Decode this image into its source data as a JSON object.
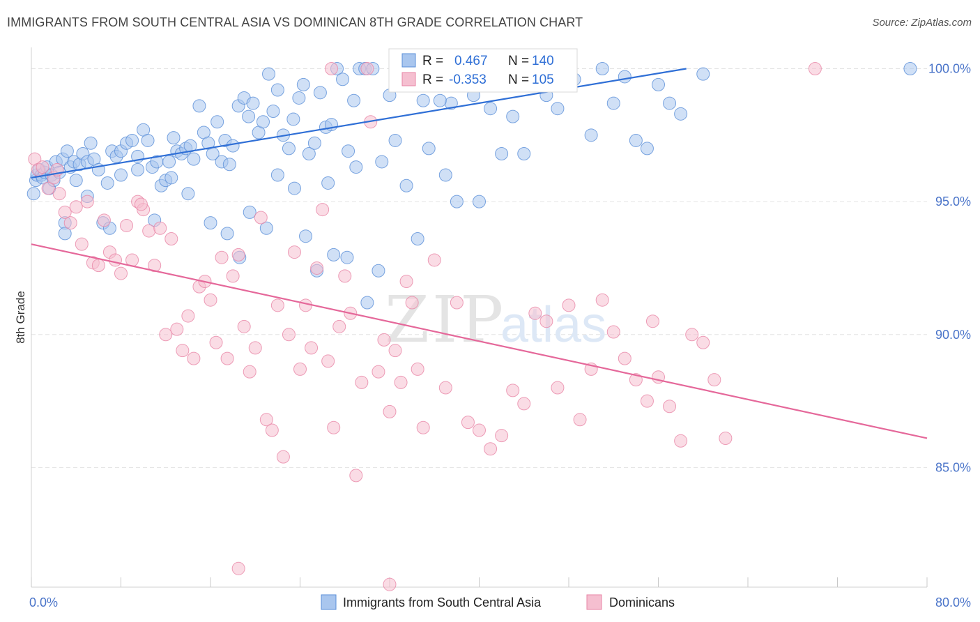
{
  "title": "IMMIGRANTS FROM SOUTH CENTRAL ASIA VS DOMINICAN 8TH GRADE CORRELATION CHART",
  "source": "Source: ZipAtlas.com",
  "watermark": {
    "zip": "ZIP",
    "atlas": "atlas"
  },
  "colors": {
    "blue_fill": "#a9c6ee",
    "blue_stroke": "#5a8fd8",
    "blue_line": "#2f6fd6",
    "pink_fill": "#f5bfd0",
    "pink_stroke": "#e886a6",
    "pink_line": "#e5689a",
    "axis_label": "#4a74c9",
    "grid": "#e3e3e3"
  },
  "chart_data": {
    "type": "scatter",
    "title": "IMMIGRANTS FROM SOUTH CENTRAL ASIA VS DOMINICAN 8TH GRADE CORRELATION CHART",
    "xlabel": "",
    "ylabel": "8th Grade",
    "xlim": [
      0,
      80
    ],
    "ylim": [
      80.5,
      100.8
    ],
    "x_tick_labels": [
      {
        "value": 0,
        "label": "0.0%"
      },
      {
        "value": 80,
        "label": "80.0%"
      }
    ],
    "x_minor_ticks": [
      0,
      8,
      16,
      24,
      32,
      40,
      48,
      56,
      64,
      72,
      80
    ],
    "y_ticks": [
      {
        "value": 100,
        "label": "100.0%"
      },
      {
        "value": 95,
        "label": "95.0%"
      },
      {
        "value": 90,
        "label": "90.0%"
      },
      {
        "value": 85,
        "label": "85.0%"
      }
    ],
    "grid": true,
    "legend_position": "top-center",
    "stats": [
      {
        "r_label": "R =",
        "r_value": "0.467",
        "n_label": "N =",
        "n_value": "140"
      },
      {
        "r_label": "R =",
        "r_value": "-0.353",
        "n_label": "N =",
        "n_value": "105"
      }
    ],
    "series": [
      {
        "name": "Immigrants from South Central Asia",
        "color": "#a9c6ee",
        "trend": {
          "x": [
            0,
            58.5
          ],
          "y": [
            95.9,
            100
          ]
        },
        "points": [
          [
            0.2,
            95.3
          ],
          [
            0.4,
            95.8
          ],
          [
            0.5,
            96.0
          ],
          [
            0.7,
            96.2
          ],
          [
            0.9,
            96.0
          ],
          [
            1.0,
            95.9
          ],
          [
            1.2,
            96.1
          ],
          [
            1.4,
            96.3
          ],
          [
            1.6,
            95.5
          ],
          [
            1.8,
            96.0
          ],
          [
            2.0,
            95.8
          ],
          [
            2.2,
            96.5
          ],
          [
            2.5,
            96.1
          ],
          [
            2.8,
            96.6
          ],
          [
            3.0,
            94.2
          ],
          [
            3.2,
            96.9
          ],
          [
            3.5,
            96.3
          ],
          [
            3.8,
            96.5
          ],
          [
            4.0,
            95.8
          ],
          [
            4.3,
            96.4
          ],
          [
            4.6,
            96.8
          ],
          [
            5.0,
            96.5
          ],
          [
            5.3,
            97.2
          ],
          [
            5.6,
            96.6
          ],
          [
            6.0,
            96.2
          ],
          [
            6.4,
            94.2
          ],
          [
            6.8,
            95.7
          ],
          [
            7.2,
            96.9
          ],
          [
            7.6,
            96.7
          ],
          [
            8.0,
            96.9
          ],
          [
            8.5,
            97.2
          ],
          [
            9.0,
            97.3
          ],
          [
            9.5,
            96.7
          ],
          [
            10.0,
            97.7
          ],
          [
            10.4,
            97.3
          ],
          [
            10.8,
            96.3
          ],
          [
            11.2,
            96.5
          ],
          [
            11.6,
            95.6
          ],
          [
            12.0,
            95.8
          ],
          [
            12.3,
            96.5
          ],
          [
            12.7,
            97.4
          ],
          [
            13.0,
            96.9
          ],
          [
            13.4,
            96.8
          ],
          [
            13.8,
            97.0
          ],
          [
            14.2,
            97.1
          ],
          [
            14.5,
            96.6
          ],
          [
            15.0,
            98.6
          ],
          [
            15.4,
            97.6
          ],
          [
            15.8,
            97.2
          ],
          [
            16.2,
            96.8
          ],
          [
            16.6,
            98.0
          ],
          [
            17.0,
            96.5
          ],
          [
            17.3,
            97.3
          ],
          [
            17.7,
            96.4
          ],
          [
            18.0,
            97.1
          ],
          [
            18.5,
            98.6
          ],
          [
            19.0,
            98.9
          ],
          [
            19.4,
            98.2
          ],
          [
            19.8,
            98.7
          ],
          [
            20.3,
            97.6
          ],
          [
            20.7,
            98.0
          ],
          [
            21.2,
            99.8
          ],
          [
            21.6,
            98.4
          ],
          [
            22.0,
            99.2
          ],
          [
            22.5,
            97.5
          ],
          [
            23.0,
            97.0
          ],
          [
            23.4,
            98.1
          ],
          [
            23.9,
            98.9
          ],
          [
            24.3,
            99.4
          ],
          [
            24.8,
            96.8
          ],
          [
            25.3,
            97.2
          ],
          [
            25.8,
            99.1
          ],
          [
            26.3,
            97.8
          ],
          [
            26.8,
            97.9
          ],
          [
            27.3,
            100.0
          ],
          [
            27.8,
            99.6
          ],
          [
            28.3,
            96.9
          ],
          [
            28.8,
            98.8
          ],
          [
            29.3,
            100.0
          ],
          [
            29.8,
            100.0
          ],
          [
            30.5,
            100.0
          ],
          [
            31.3,
            96.5
          ],
          [
            32.0,
            99.0
          ],
          [
            33.0,
            100.0
          ],
          [
            34.0,
            100.0
          ],
          [
            35.0,
            98.8
          ],
          [
            36.0,
            100.0
          ],
          [
            37.5,
            98.7
          ],
          [
            38.5,
            100.0
          ],
          [
            39.5,
            99.0
          ],
          [
            3.0,
            93.8
          ],
          [
            5.0,
            95.2
          ],
          [
            7.0,
            94.0
          ],
          [
            8.0,
            96.0
          ],
          [
            9.5,
            96.2
          ],
          [
            11.0,
            94.3
          ],
          [
            12.5,
            95.9
          ],
          [
            14.0,
            95.3
          ],
          [
            16.0,
            94.2
          ],
          [
            17.5,
            93.8
          ],
          [
            18.6,
            92.9
          ],
          [
            19.5,
            94.6
          ],
          [
            21.0,
            94.0
          ],
          [
            22.0,
            96.0
          ],
          [
            23.5,
            95.5
          ],
          [
            24.5,
            93.7
          ],
          [
            25.5,
            92.4
          ],
          [
            26.5,
            95.7
          ],
          [
            27.0,
            93.0
          ],
          [
            28.2,
            92.9
          ],
          [
            29.0,
            96.3
          ],
          [
            30.0,
            91.2
          ],
          [
            31.0,
            92.4
          ],
          [
            32.5,
            97.3
          ],
          [
            33.5,
            95.6
          ],
          [
            34.5,
            93.6
          ],
          [
            35.5,
            97.0
          ],
          [
            36.5,
            98.8
          ],
          [
            37.0,
            96.0
          ],
          [
            38.0,
            95.0
          ],
          [
            40.0,
            95.0
          ],
          [
            41.0,
            98.5
          ],
          [
            42.0,
            96.8
          ],
          [
            43.0,
            98.2
          ],
          [
            44.0,
            96.8
          ],
          [
            45.0,
            99.9
          ],
          [
            46.0,
            99.0
          ],
          [
            47.0,
            98.5
          ],
          [
            48.5,
            99.6
          ],
          [
            50.0,
            97.5
          ],
          [
            51.0,
            100.0
          ],
          [
            52.0,
            98.7
          ],
          [
            53.0,
            99.7
          ],
          [
            54.0,
            97.3
          ],
          [
            55.0,
            97.0
          ],
          [
            56.0,
            99.4
          ],
          [
            57.0,
            98.7
          ],
          [
            58.0,
            98.3
          ],
          [
            60.0,
            99.8
          ],
          [
            78.5,
            100.0
          ]
        ]
      },
      {
        "name": "Dominicans",
        "color": "#f5bfd0",
        "trend": {
          "x": [
            0,
            80
          ],
          "y": [
            93.4,
            86.1
          ]
        },
        "points": [
          [
            0.3,
            96.6
          ],
          [
            0.6,
            96.2
          ],
          [
            1.0,
            96.3
          ],
          [
            1.5,
            95.5
          ],
          [
            2.0,
            95.9
          ],
          [
            2.5,
            95.3
          ],
          [
            3.0,
            94.6
          ],
          [
            3.5,
            94.2
          ],
          [
            4.0,
            94.8
          ],
          [
            4.5,
            93.4
          ],
          [
            5.0,
            95.0
          ],
          [
            5.5,
            92.7
          ],
          [
            6.0,
            92.6
          ],
          [
            6.5,
            94.3
          ],
          [
            7.0,
            93.1
          ],
          [
            7.5,
            92.8
          ],
          [
            8.0,
            92.3
          ],
          [
            8.5,
            94.1
          ],
          [
            9.0,
            92.8
          ],
          [
            9.5,
            95.0
          ],
          [
            10.0,
            94.7
          ],
          [
            10.5,
            93.9
          ],
          [
            11.0,
            92.6
          ],
          [
            11.5,
            94.0
          ],
          [
            12.0,
            90.0
          ],
          [
            12.5,
            93.6
          ],
          [
            13.0,
            90.2
          ],
          [
            13.5,
            89.4
          ],
          [
            14.0,
            90.7
          ],
          [
            14.5,
            89.1
          ],
          [
            15.0,
            91.8
          ],
          [
            15.5,
            92.0
          ],
          [
            16.0,
            91.3
          ],
          [
            16.5,
            89.7
          ],
          [
            17.0,
            92.9
          ],
          [
            17.5,
            89.1
          ],
          [
            18.0,
            92.2
          ],
          [
            18.5,
            93.0
          ],
          [
            19.0,
            90.3
          ],
          [
            19.5,
            88.6
          ],
          [
            20.0,
            89.5
          ],
          [
            20.5,
            94.4
          ],
          [
            21.0,
            86.8
          ],
          [
            21.5,
            86.4
          ],
          [
            22.0,
            91.1
          ],
          [
            22.5,
            85.4
          ],
          [
            23.0,
            90.0
          ],
          [
            23.5,
            93.1
          ],
          [
            24.0,
            88.7
          ],
          [
            24.5,
            91.1
          ],
          [
            25.0,
            89.5
          ],
          [
            25.5,
            92.5
          ],
          [
            26.0,
            94.7
          ],
          [
            26.5,
            89.0
          ],
          [
            27.0,
            86.5
          ],
          [
            27.5,
            90.3
          ],
          [
            28.0,
            92.2
          ],
          [
            28.5,
            90.8
          ],
          [
            29.0,
            84.7
          ],
          [
            29.5,
            88.2
          ],
          [
            30.0,
            100.0
          ],
          [
            30.3,
            98.0
          ],
          [
            31.0,
            88.6
          ],
          [
            31.5,
            89.8
          ],
          [
            32.0,
            87.1
          ],
          [
            32.5,
            89.4
          ],
          [
            33.0,
            88.2
          ],
          [
            33.5,
            92.0
          ],
          [
            34.0,
            91.2
          ],
          [
            34.5,
            88.7
          ],
          [
            35.0,
            86.5
          ],
          [
            36.0,
            92.8
          ],
          [
            37.0,
            88.0
          ],
          [
            38.0,
            91.2
          ],
          [
            39.0,
            86.7
          ],
          [
            40.0,
            86.4
          ],
          [
            41.0,
            85.7
          ],
          [
            42.0,
            86.2
          ],
          [
            43.0,
            87.9
          ],
          [
            44.0,
            87.4
          ],
          [
            45.0,
            90.8
          ],
          [
            46.0,
            90.5
          ],
          [
            47.0,
            88.0
          ],
          [
            48.0,
            91.1
          ],
          [
            49.0,
            86.8
          ],
          [
            50.0,
            88.7
          ],
          [
            51.0,
            91.3
          ],
          [
            52.0,
            90.1
          ],
          [
            53.0,
            89.1
          ],
          [
            54.0,
            88.3
          ],
          [
            55.0,
            87.5
          ],
          [
            55.5,
            90.5
          ],
          [
            56.0,
            88.4
          ],
          [
            57.0,
            87.3
          ],
          [
            58.0,
            86.0
          ],
          [
            59.0,
            90.0
          ],
          [
            60.0,
            89.7
          ],
          [
            61.0,
            88.3
          ],
          [
            62.0,
            86.1
          ],
          [
            70.0,
            100.0
          ],
          [
            18.5,
            81.2
          ],
          [
            32.0,
            80.6
          ],
          [
            2.3,
            96.2
          ],
          [
            9.8,
            94.9
          ],
          [
            26.8,
            100.0
          ]
        ]
      }
    ]
  },
  "legend": [
    {
      "label": "Immigrants from South Central Asia"
    },
    {
      "label": "Dominicans"
    }
  ]
}
